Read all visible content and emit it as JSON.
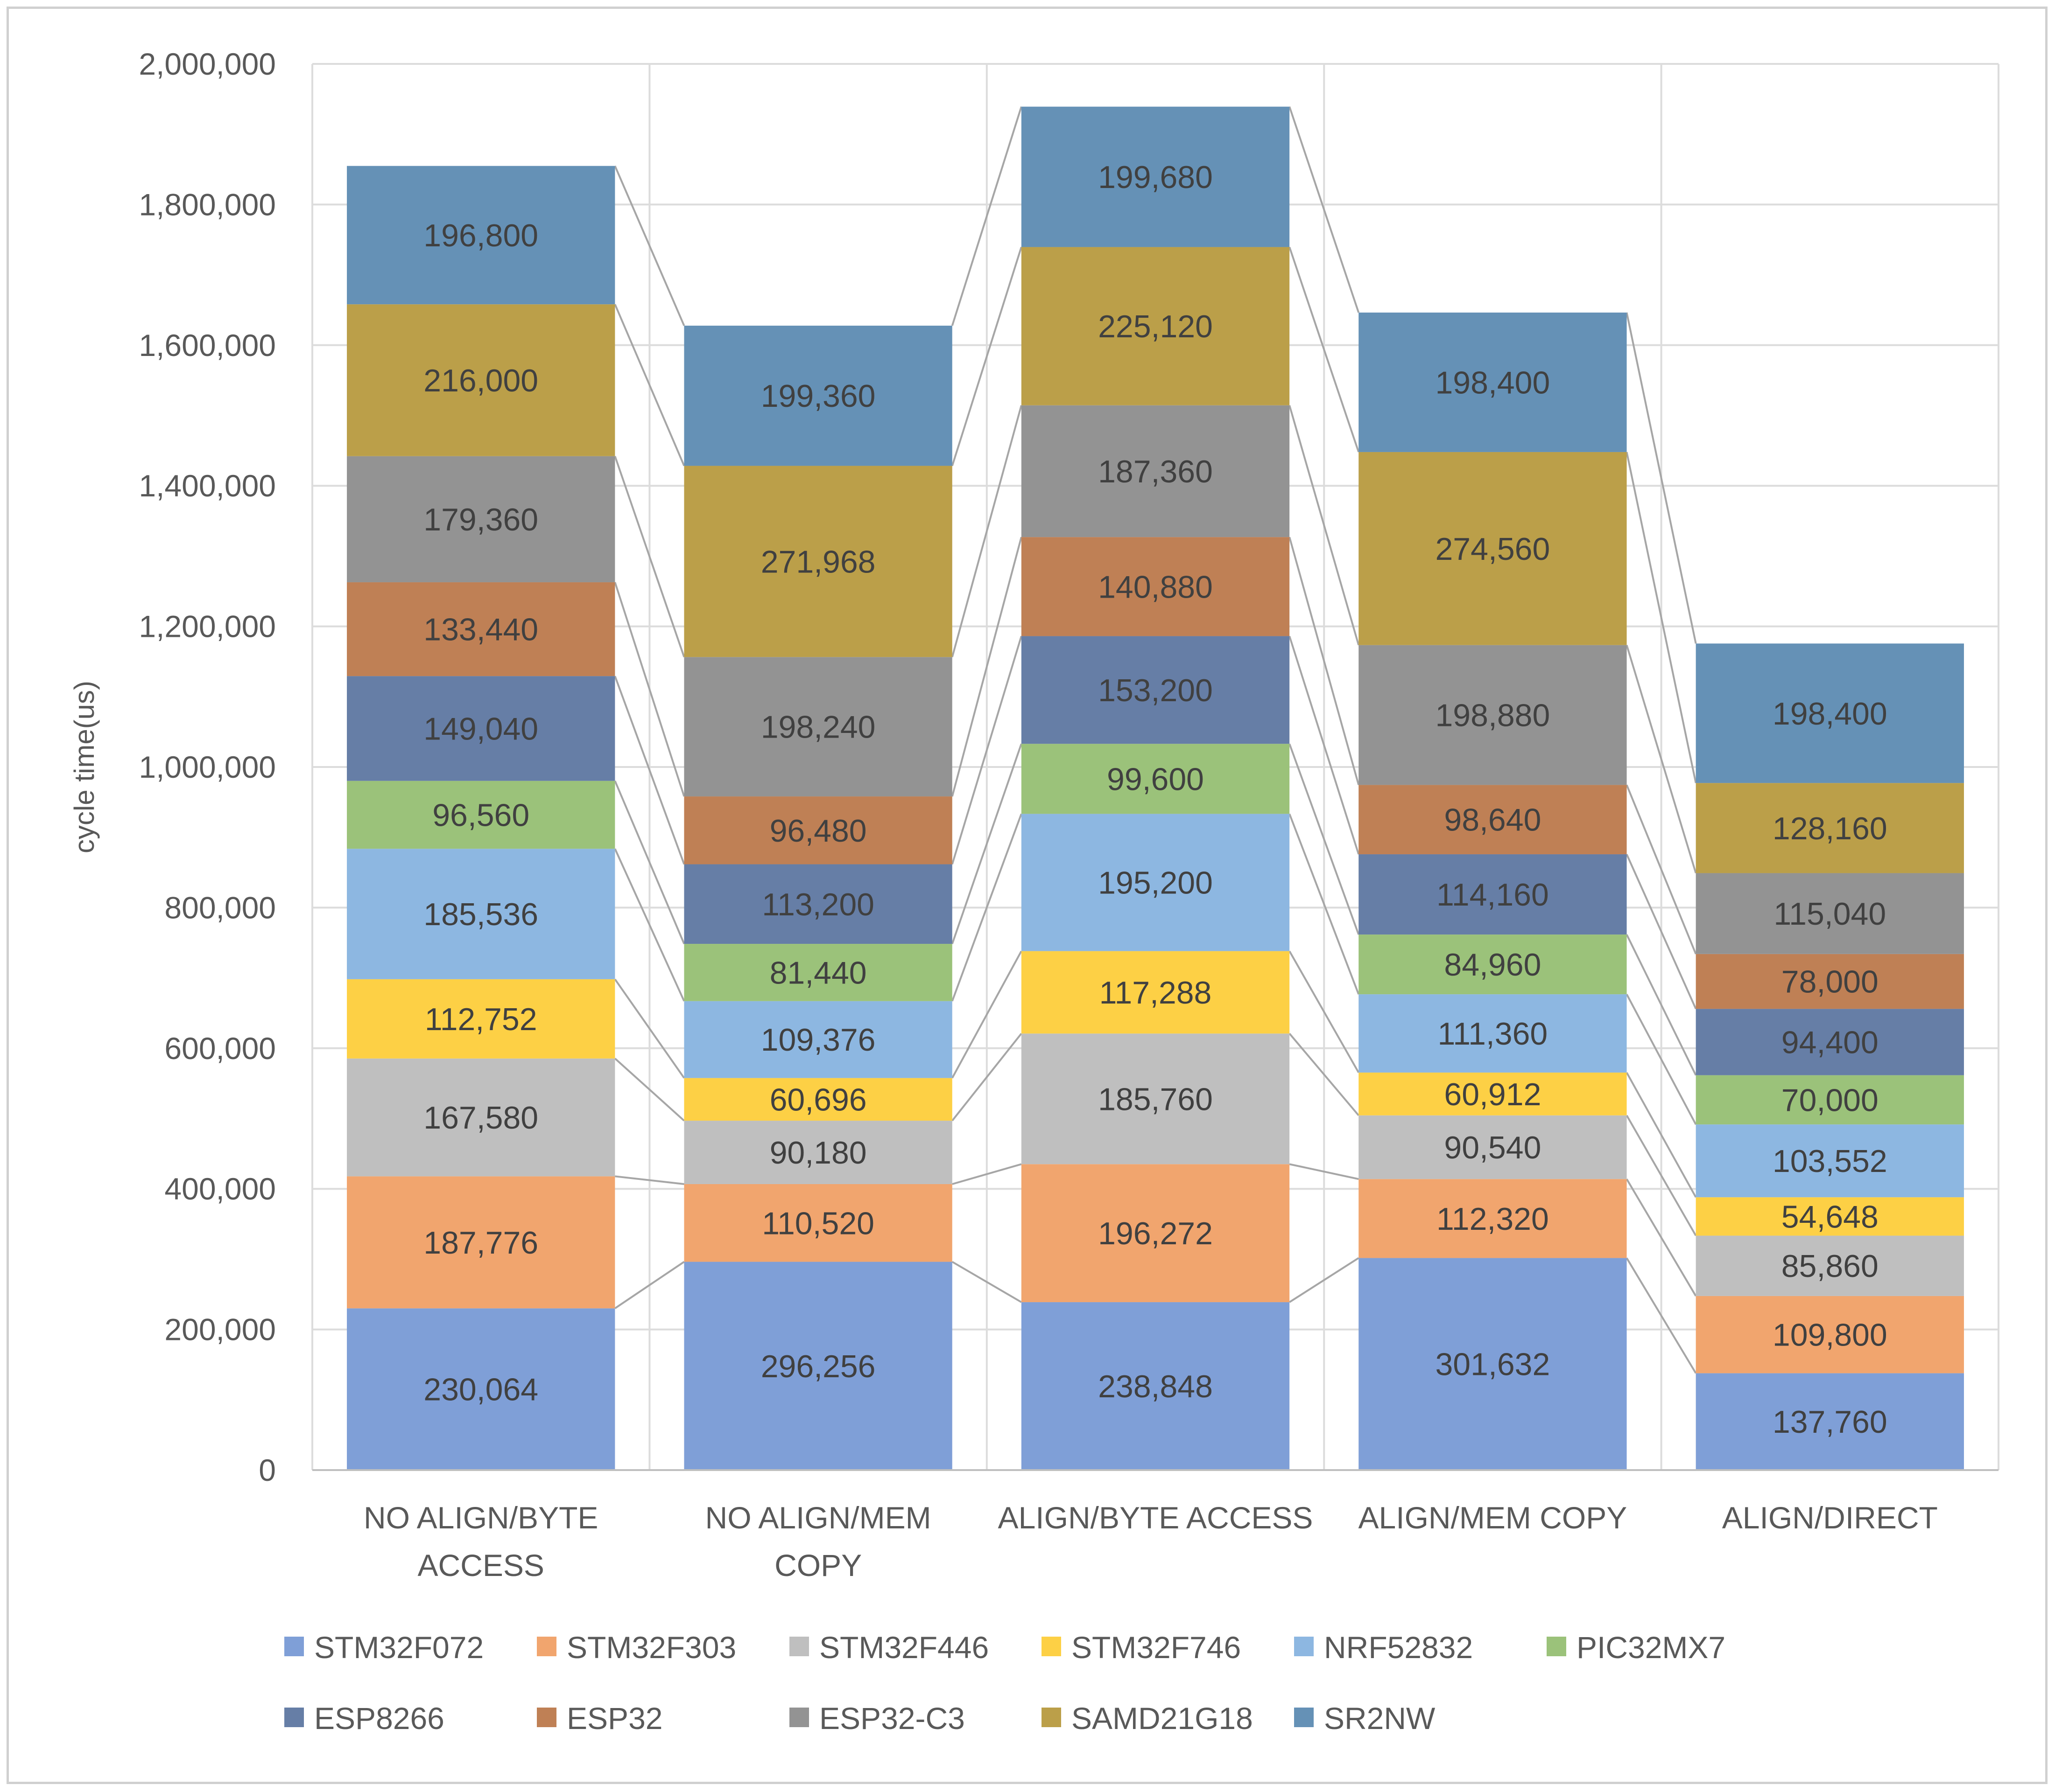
{
  "chart_data": {
    "type": "bar",
    "stacked": true,
    "title": "",
    "xlabel": "",
    "ylabel": "cycle time(us)",
    "ylim": [
      0,
      2000000
    ],
    "yticks": [
      0,
      200000,
      400000,
      600000,
      800000,
      1000000,
      1200000,
      1400000,
      1600000,
      1800000,
      2000000
    ],
    "ytick_labels": [
      "0",
      "200,000",
      "400,000",
      "600,000",
      "800,000",
      "1,000,000",
      "1,200,000",
      "1,400,000",
      "1,600,000",
      "1,800,000",
      "2,000,000"
    ],
    "grid": true,
    "series_lines": true,
    "legend_position": "bottom",
    "categories": [
      [
        "NO ALIGN/BYTE",
        "ACCESS"
      ],
      [
        "NO ALIGN/MEM",
        "COPY"
      ],
      [
        "ALIGN/BYTE ACCESS"
      ],
      [
        "ALIGN/MEM COPY"
      ],
      [
        "ALIGN/DIRECT"
      ]
    ],
    "series": [
      {
        "name": "STM32F072",
        "color": "#7f9fd7",
        "values": [
          230064,
          296256,
          238848,
          301632,
          137760
        ],
        "labels": [
          "230,064",
          "296,256",
          "238,848",
          "301,632",
          "137,760"
        ]
      },
      {
        "name": "STM32F303",
        "color": "#f1a56e",
        "values": [
          187776,
          110520,
          196272,
          112320,
          109800
        ],
        "labels": [
          "187,776",
          "110,520",
          "196,272",
          "112,320",
          "109,800"
        ]
      },
      {
        "name": "STM32F446",
        "color": "#bfbfbf",
        "values": [
          167580,
          90180,
          185760,
          90540,
          85860
        ],
        "labels": [
          "167,580",
          "90,180",
          "185,760",
          "90,540",
          "85,860"
        ]
      },
      {
        "name": "STM32F746",
        "color": "#fdd045",
        "values": [
          112752,
          60696,
          117288,
          60912,
          54648
        ],
        "labels": [
          "112,752",
          "60,696",
          "117,288",
          "60,912",
          "54,648"
        ]
      },
      {
        "name": "NRF52832",
        "color": "#8db7e1",
        "values": [
          185536,
          109376,
          195200,
          111360,
          103552
        ],
        "labels": [
          "185,536",
          "109,376",
          "195,200",
          "111,360",
          "103,552"
        ]
      },
      {
        "name": "PIC32MX7",
        "color": "#9bc27a",
        "values": [
          96560,
          81440,
          99600,
          84960,
          70000
        ],
        "labels": [
          "96,560",
          "81,440",
          "99,600",
          "84,960",
          "70,000"
        ]
      },
      {
        "name": "ESP8266",
        "color": "#667ea6",
        "values": [
          149040,
          113200,
          153200,
          114160,
          94400
        ],
        "labels": [
          "149,040",
          "113,200",
          "153,200",
          "114,160",
          "94,400"
        ]
      },
      {
        "name": "ESP32",
        "color": "#bf8055",
        "values": [
          133440,
          96480,
          140880,
          98640,
          78000
        ],
        "labels": [
          "133,440",
          "96,480",
          "140,880",
          "98,640",
          "78,000"
        ]
      },
      {
        "name": "ESP32-C3",
        "color": "#939393",
        "values": [
          179360,
          198240,
          187360,
          198880,
          115040
        ],
        "labels": [
          "179,360",
          "198,240",
          "187,360",
          "198,880",
          "115,040"
        ]
      },
      {
        "name": "SAMD21G18",
        "color": "#bb9f49",
        "values": [
          216000,
          271968,
          225120,
          274560,
          128160
        ],
        "labels": [
          "216,000",
          "271,968",
          "225,120",
          "274,560",
          "128,160"
        ]
      },
      {
        "name": "SR2NW",
        "color": "#6591b6",
        "values": [
          196800,
          199360,
          199680,
          198400,
          198400
        ],
        "labels": [
          "196,800",
          "199,360",
          "199,680",
          "198,400",
          "198,400"
        ]
      }
    ]
  }
}
